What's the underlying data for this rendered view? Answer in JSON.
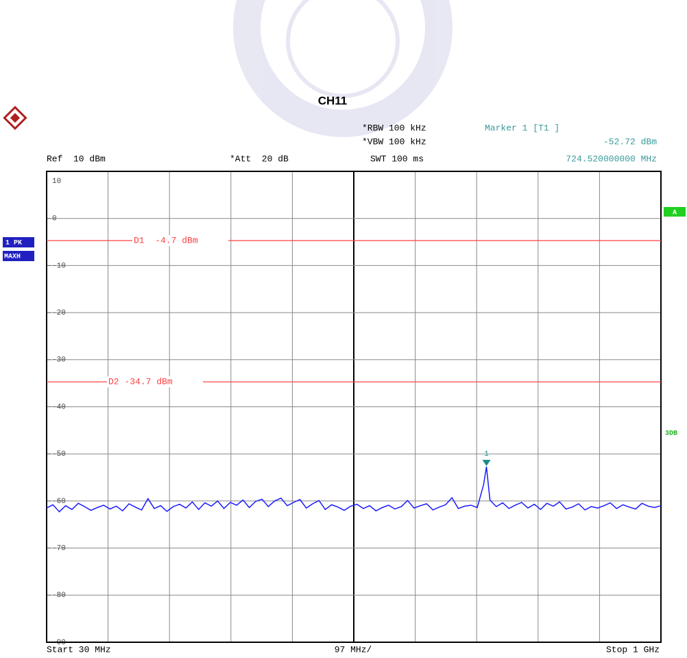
{
  "header": {
    "rbw": "*RBW 100 kHz",
    "vbw": "*VBW 100 kHz",
    "swt": "SWT 100 ms",
    "ref": "Ref  10 dBm",
    "att": "*Att  20 dB",
    "marker_title": "Marker 1 [T1 ]",
    "trace_mode": "1 PK",
    "trace_detector": "MAXH",
    "screen": "A",
    "side_note": "3DB",
    "start": "Start 30 MHz",
    "span_div": "97 MHz/",
    "stop": "Stop 1 GHz"
  },
  "chart_data": {
    "type": "line",
    "title": "CH11",
    "x": [
      30,
      40,
      50,
      60,
      70,
      80,
      90,
      100,
      110,
      120,
      130,
      140,
      150,
      160,
      170,
      180,
      190,
      200,
      210,
      220,
      230,
      240,
      250,
      260,
      270,
      280,
      290,
      300,
      310,
      320,
      330,
      340,
      350,
      360,
      370,
      380,
      390,
      400,
      410,
      420,
      430,
      440,
      450,
      460,
      470,
      480,
      490,
      500,
      510,
      520,
      530,
      540,
      550,
      560,
      570,
      580,
      590,
      600,
      610,
      620,
      630,
      640,
      650,
      660,
      670,
      680,
      690,
      700,
      710,
      720,
      724.52,
      730,
      740,
      750,
      760,
      770,
      780,
      790,
      800,
      810,
      820,
      830,
      840,
      850,
      860,
      870,
      880,
      890,
      900,
      910,
      920,
      930,
      940,
      950,
      960,
      970,
      980,
      990,
      1000
    ],
    "series": [
      {
        "name": "1 PK MAXH",
        "color": "#1a1aff",
        "values": [
          -61.5,
          -60.8,
          -62.3,
          -61.0,
          -61.8,
          -60.5,
          -61.2,
          -62.0,
          -61.4,
          -60.9,
          -61.7,
          -61.1,
          -62.1,
          -60.6,
          -61.3,
          -61.9,
          -59.5,
          -61.6,
          -61.0,
          -62.2,
          -61.2,
          -60.7,
          -61.5,
          -60.2,
          -61.8,
          -60.4,
          -61.1,
          -60.0,
          -61.6,
          -60.3,
          -60.9,
          -59.8,
          -61.4,
          -60.1,
          -59.6,
          -61.2,
          -60.0,
          -59.4,
          -61.0,
          -60.3,
          -59.7,
          -61.5,
          -60.6,
          -59.9,
          -61.8,
          -60.8,
          -61.3,
          -62.0,
          -61.1,
          -60.7,
          -61.6,
          -61.0,
          -62.1,
          -61.4,
          -60.9,
          -61.7,
          -61.2,
          -59.9,
          -61.5,
          -61.0,
          -60.6,
          -61.9,
          -61.3,
          -60.8,
          -59.3,
          -61.6,
          -61.1,
          -60.9,
          -61.4,
          -56.5,
          -52.72,
          -59.8,
          -61.2,
          -60.4,
          -61.6,
          -60.9,
          -60.3,
          -61.5,
          -60.7,
          -61.8,
          -60.5,
          -61.1,
          -60.2,
          -61.7,
          -61.3,
          -60.6,
          -61.9,
          -61.2,
          -61.5,
          -61.0,
          -60.4,
          -61.6,
          -60.8,
          -61.3,
          -61.7,
          -60.5,
          -61.1,
          -61.4,
          -61.0
        ]
      }
    ],
    "xlim": [
      30,
      1000
    ],
    "xticks": [
      30,
      127,
      224,
      321,
      418,
      515,
      612,
      709,
      806,
      903,
      1000
    ],
    "ylim": [
      -90,
      10
    ],
    "yticks": [
      -90,
      -80,
      -70,
      -60,
      -50,
      -40,
      -30,
      -20,
      -10,
      0,
      10
    ],
    "grid": true,
    "display_lines": [
      {
        "value": -4.7,
        "label": "D1  -4.7 dBm",
        "color": "#ff4040"
      },
      {
        "value": -34.7,
        "label": "D2 -34.7 dBm",
        "color": "#ff4040"
      }
    ],
    "marker": {
      "label": "1",
      "x": 724.52,
      "y": -52.72,
      "x_label": "724.520000000 MHz",
      "y_label": "-52.72 dBm",
      "color": "#1a8a8a"
    }
  }
}
